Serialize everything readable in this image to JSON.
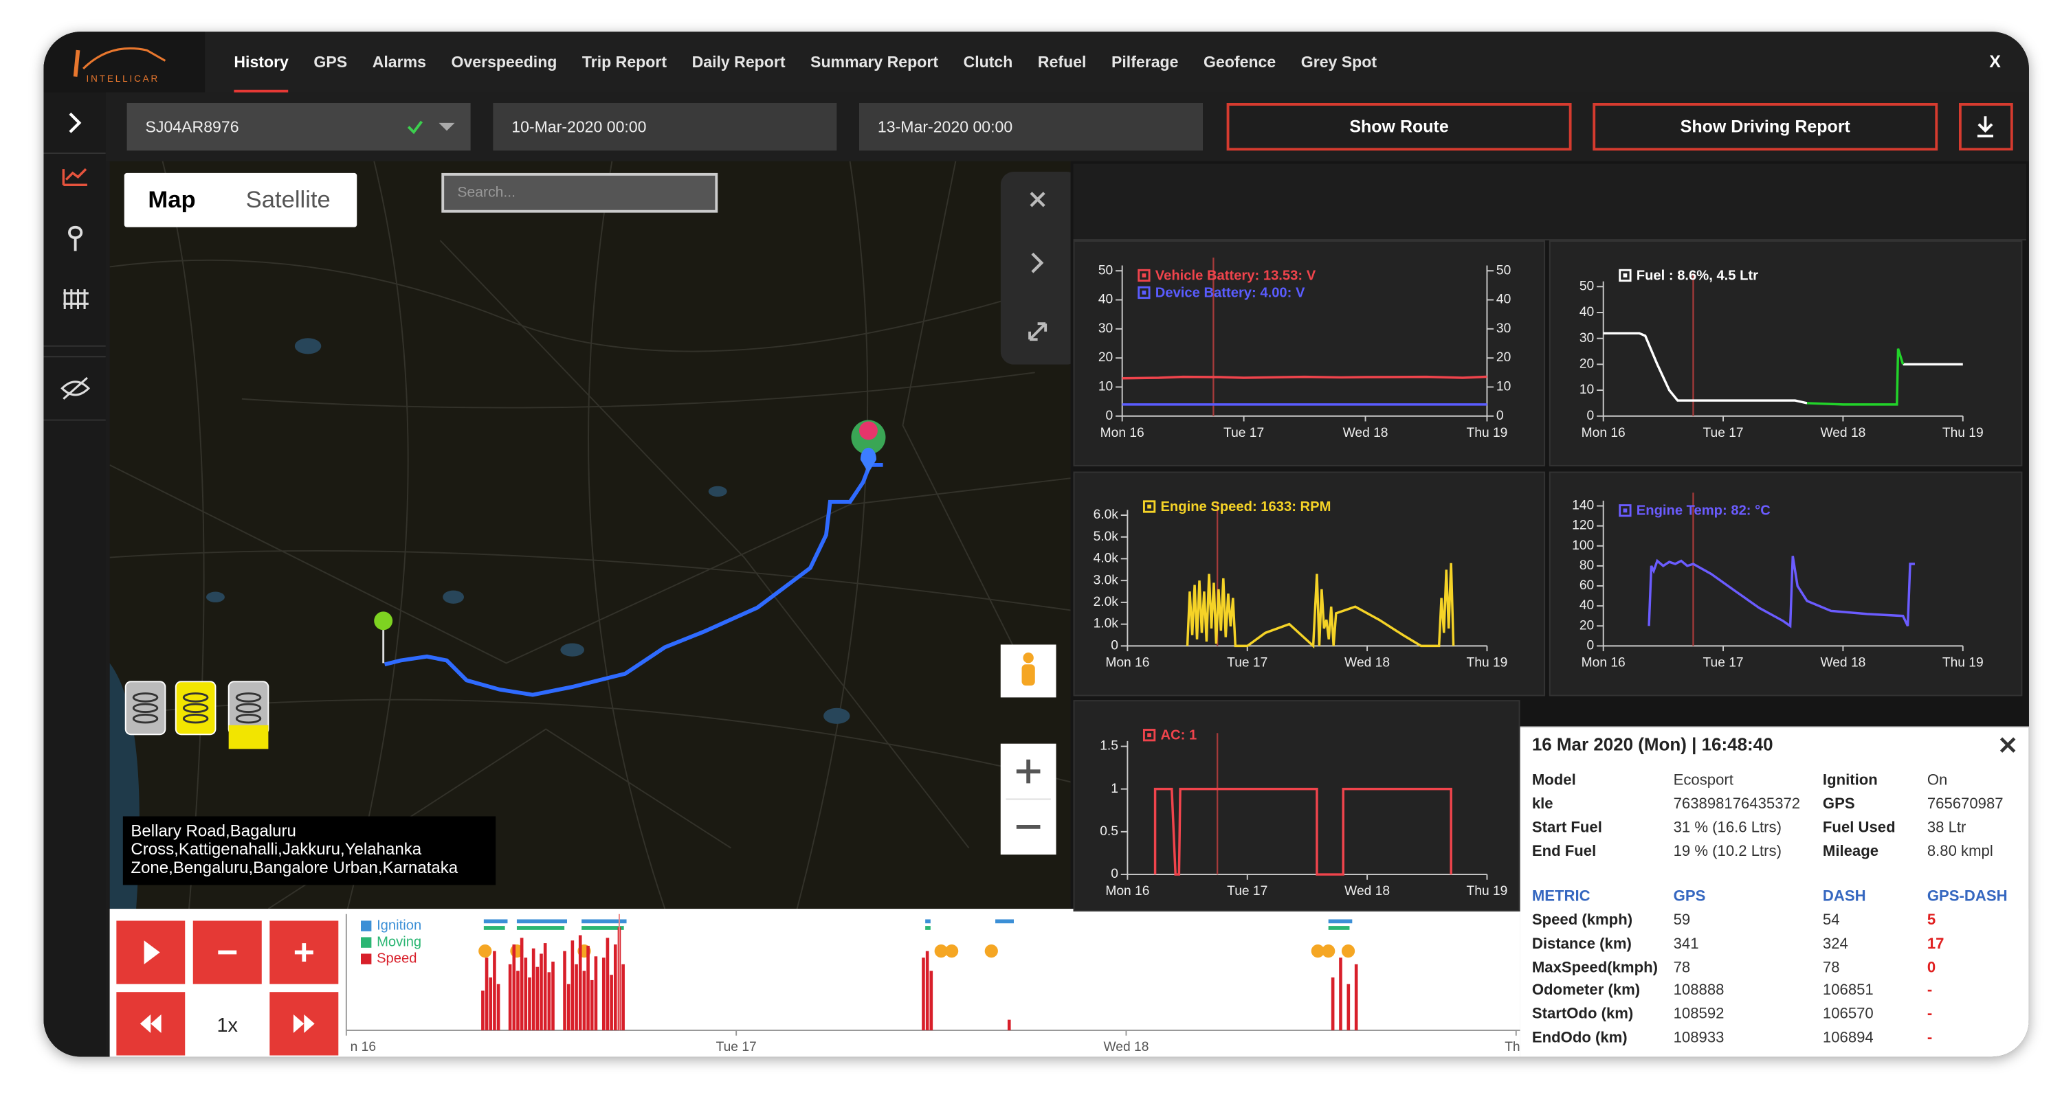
{
  "nav": {
    "logo": "INTELLICAR",
    "tabs": [
      "History",
      "GPS",
      "Alarms",
      "Overspeeding",
      "Trip Report",
      "Daily Report",
      "Summary Report",
      "Clutch",
      "Refuel",
      "Pilferage",
      "Geofence",
      "Grey Spot"
    ],
    "close": "X"
  },
  "toolbar": {
    "vehicle": "SJ04AR8976",
    "from": "10-Mar-2020 00:00",
    "to": "13-Mar-2020 00:00",
    "buttons": [
      "Show Route",
      "Show Driving Report"
    ]
  },
  "map": {
    "toggle": [
      "Map",
      "Satellite"
    ],
    "search": "Search...",
    "address": "Bellary Road,Bagaluru Cross,Kattigenahalli,Jakkuru,Yelahanka Zone,Bengaluru,Bangalore Urban,Karnataka"
  },
  "chart_data": [
    {
      "type": "line",
      "xlim": [
        0,
        3
      ],
      "xticks": [
        {
          "value": 0,
          "label": "Mon 16"
        },
        {
          "value": 1,
          "label": "Tue 17"
        },
        {
          "value": 2,
          "label": "Wed 18"
        },
        {
          "value": 3,
          "label": "Thu 19"
        }
      ],
      "ylim": [
        0,
        50
      ],
      "yticks": [
        0,
        10,
        20,
        30,
        40,
        50
      ],
      "y2lim": [
        0,
        50
      ],
      "y2ticks": [
        0,
        10,
        20,
        30,
        40,
        50
      ],
      "cursor": 0.75,
      "x": [
        0,
        0.3,
        0.5,
        0.8,
        1.0,
        1.5,
        1.8,
        2.0,
        2.5,
        2.8,
        3.0
      ],
      "series": [
        {
          "name": "Vehicle Battery: 13.53: V",
          "color": "#f0444c",
          "values": [
            13,
            13.2,
            13.5,
            13.4,
            13.2,
            13.5,
            13.3,
            13.4,
            13.5,
            13.2,
            13.53
          ]
        },
        {
          "name": "Device Battery: 4.00: V",
          "color": "#5a5cff",
          "values": [
            4,
            4,
            4,
            4,
            4,
            4,
            4,
            4,
            4,
            4,
            4
          ]
        }
      ]
    },
    {
      "type": "line",
      "xlim": [
        0,
        3
      ],
      "xticks": [
        {
          "value": 0,
          "label": "Mon 16"
        },
        {
          "value": 1,
          "label": "Tue 17"
        },
        {
          "value": 2,
          "label": "Wed 18"
        },
        {
          "value": 3,
          "label": "Thu 19"
        }
      ],
      "ylim": [
        0,
        50
      ],
      "yticks": [
        0,
        10,
        20,
        30,
        40,
        50
      ],
      "cursor": 0.75,
      "x": [
        0,
        0.3,
        0.35,
        0.45,
        0.55,
        0.62,
        1.0,
        1.4,
        1.6,
        1.7,
        2.0,
        2.45,
        2.46,
        2.5,
        3.0
      ],
      "series": [
        {
          "name": "Fuel : 8.6%, 4.5 Ltr",
          "color": "#ffffff",
          "values": [
            32,
            32,
            31,
            20,
            10,
            6,
            6,
            6,
            6,
            5,
            null,
            null,
            null,
            20,
            20
          ]
        },
        {
          "color": "#22d32a",
          "values": [
            null,
            null,
            null,
            null,
            null,
            null,
            null,
            null,
            null,
            5,
            4.5,
            4.5,
            26,
            20,
            null
          ]
        }
      ]
    },
    {
      "type": "line",
      "xlim": [
        0,
        3
      ],
      "xticks": [
        {
          "value": 0,
          "label": "Mon 16"
        },
        {
          "value": 1,
          "label": "Tue 17"
        },
        {
          "value": 2,
          "label": "Wed 18"
        },
        {
          "value": 3,
          "label": "Thu 19"
        }
      ],
      "ylim": [
        0,
        6000
      ],
      "yticks": [
        0,
        {
          "value": 1000,
          "label": "1.0k"
        },
        {
          "value": 2000,
          "label": "2.0k"
        },
        {
          "value": 3000,
          "label": "3.0k"
        },
        {
          "value": 4000,
          "label": "4.0k"
        },
        {
          "value": 5000,
          "label": "5.0k"
        },
        {
          "value": 6000,
          "label": "6.0k"
        }
      ],
      "cursor": 0.75,
      "x": [
        0.5,
        0.52,
        0.54,
        0.56,
        0.58,
        0.6,
        0.62,
        0.64,
        0.66,
        0.68,
        0.7,
        0.72,
        0.74,
        0.76,
        0.78,
        0.8,
        0.82,
        0.84,
        0.86,
        0.88,
        0.9,
        1.0,
        1.15,
        1.35,
        1.55,
        1.58,
        1.6,
        1.62,
        1.64,
        1.66,
        1.68,
        1.7,
        1.72,
        1.74,
        1.9,
        2.1,
        2.3,
        2.45,
        2.6,
        2.62,
        2.64,
        2.66,
        2.68,
        2.7,
        2.72
      ],
      "series": [
        {
          "name": "Engine Speed: 1633: RPM",
          "color": "#f5d327",
          "values": [
            0,
            2500,
            500,
            2800,
            300,
            3000,
            600,
            2500,
            200,
            3300,
            800,
            2900,
            100,
            2600,
            700,
            3100,
            400,
            2400,
            900,
            2200,
            0,
            0,
            600,
            1000,
            0,
            3300,
            0,
            2600,
            800,
            1200,
            300,
            1800,
            0,
            1500,
            1800,
            1200,
            500,
            0,
            0,
            2200,
            600,
            3500,
            800,
            3800,
            0
          ]
        }
      ]
    },
    {
      "type": "line",
      "xlim": [
        0,
        3
      ],
      "xticks": [
        {
          "value": 0,
          "label": "Mon 16"
        },
        {
          "value": 1,
          "label": "Tue 17"
        },
        {
          "value": 2,
          "label": "Wed 18"
        },
        {
          "value": 3,
          "label": "Thu 19"
        }
      ],
      "ylim": [
        0,
        140
      ],
      "yticks": [
        0,
        20,
        40,
        60,
        80,
        100,
        120,
        140
      ],
      "cursor": 0.75,
      "x": [
        0.38,
        0.4,
        0.42,
        0.45,
        0.5,
        0.55,
        0.6,
        0.65,
        0.7,
        0.75,
        0.9,
        1.1,
        1.3,
        1.5,
        1.56,
        1.58,
        1.62,
        1.7,
        1.9,
        2.2,
        2.5,
        2.54,
        2.56,
        2.6
      ],
      "series": [
        {
          "name": "Engine Temp: 82: °C",
          "color": "#6b5cff",
          "values": [
            20,
            80,
            75,
            85,
            80,
            84,
            82,
            85,
            80,
            82,
            72,
            55,
            38,
            25,
            20,
            90,
            60,
            45,
            35,
            32,
            30,
            20,
            82,
            82
          ]
        }
      ]
    },
    {
      "type": "line",
      "xlim": [
        0,
        3
      ],
      "xticks": [
        {
          "value": 0,
          "label": "Mon 16"
        },
        {
          "value": 1,
          "label": "Tue 17"
        },
        {
          "value": 2,
          "label": "Wed 18"
        },
        {
          "value": 3,
          "label": "Thu 19"
        }
      ],
      "ylim": [
        0,
        1.5
      ],
      "yticks": [
        0,
        0.5,
        1,
        1.5
      ],
      "cursor": 0.75,
      "x": [
        0.23,
        0.23,
        0.37,
        0.4,
        0.43,
        0.44,
        1.58,
        1.58,
        1.8,
        1.8,
        2.7,
        2.7
      ],
      "series": [
        {
          "name": "AC: 1",
          "color": "#f0444c",
          "values": [
            0,
            1,
            1,
            0,
            0,
            1,
            1,
            0,
            0,
            1,
            1,
            0
          ]
        }
      ]
    },
    {
      "type": "bar",
      "xlim": [
        0,
        3.3
      ],
      "ylim": [
        0,
        80
      ],
      "cursor": 0.7,
      "xticks": [
        {
          "value": 0,
          "label": "n 16"
        },
        {
          "value": 1,
          "label": "Tue 17"
        },
        {
          "value": 2,
          "label": "Wed 18"
        },
        {
          "value": 3,
          "label": "Thu"
        }
      ],
      "x": [
        0.35,
        0.36,
        0.37,
        0.38,
        0.39,
        0.42,
        0.43,
        0.44,
        0.45,
        0.46,
        0.47,
        0.48,
        0.49,
        0.5,
        0.51,
        0.52,
        0.53,
        0.56,
        0.57,
        0.58,
        0.59,
        0.6,
        0.61,
        0.62,
        0.63,
        0.64,
        0.66,
        0.67,
        0.68,
        0.69,
        0.7,
        0.71,
        1.48,
        1.49,
        1.5,
        1.7,
        2.53,
        2.55,
        2.57,
        2.59
      ],
      "series": [
        {
          "name": "Ignition",
          "color": "#3b8fd6"
        },
        {
          "name": "Moving",
          "color": "#2bb673"
        },
        {
          "name": "Speed",
          "color": "#d81f2a",
          "values": [
            30,
            55,
            40,
            60,
            35,
            50,
            65,
            45,
            70,
            55,
            40,
            62,
            48,
            58,
            66,
            44,
            52,
            60,
            35,
            68,
            50,
            72,
            45,
            64,
            38,
            56,
            55,
            70,
            42,
            65,
            78,
            50,
            55,
            60,
            45,
            8,
            40,
            55,
            35,
            50
          ]
        }
      ]
    }
  ],
  "timeline_controls": {
    "speed": "1x"
  },
  "popup": {
    "title": "16 Mar 2020 (Mon) | 16:48:40",
    "info": [
      [
        "Model",
        "Ecosport",
        "Ignition",
        "On"
      ],
      [
        "kle",
        "763898176435372",
        "GPS",
        "765670987"
      ],
      [
        "Start Fuel",
        "31 % (16.6 Ltrs)",
        "Fuel Used",
        "38 Ltr"
      ],
      [
        "End Fuel",
        "19 % (10.2 Ltrs)",
        "Mileage",
        "8.80 kmpl"
      ]
    ],
    "metric_header": [
      "METRIC",
      "GPS",
      "DASH",
      "GPS-DASH"
    ],
    "metric_rows": [
      [
        "Speed (kmph)",
        "59",
        "54",
        "5"
      ],
      [
        "Distance (km)",
        "341",
        "324",
        "17"
      ],
      [
        "MaxSpeed(kmph)",
        "78",
        "78",
        "0"
      ],
      [
        "Odometer (km)",
        "108888",
        "106851",
        "-"
      ],
      [
        "StartOdo (km)",
        "108592",
        "106570",
        "-"
      ],
      [
        "EndOdo (km)",
        "108933",
        "106894",
        "-"
      ]
    ]
  }
}
